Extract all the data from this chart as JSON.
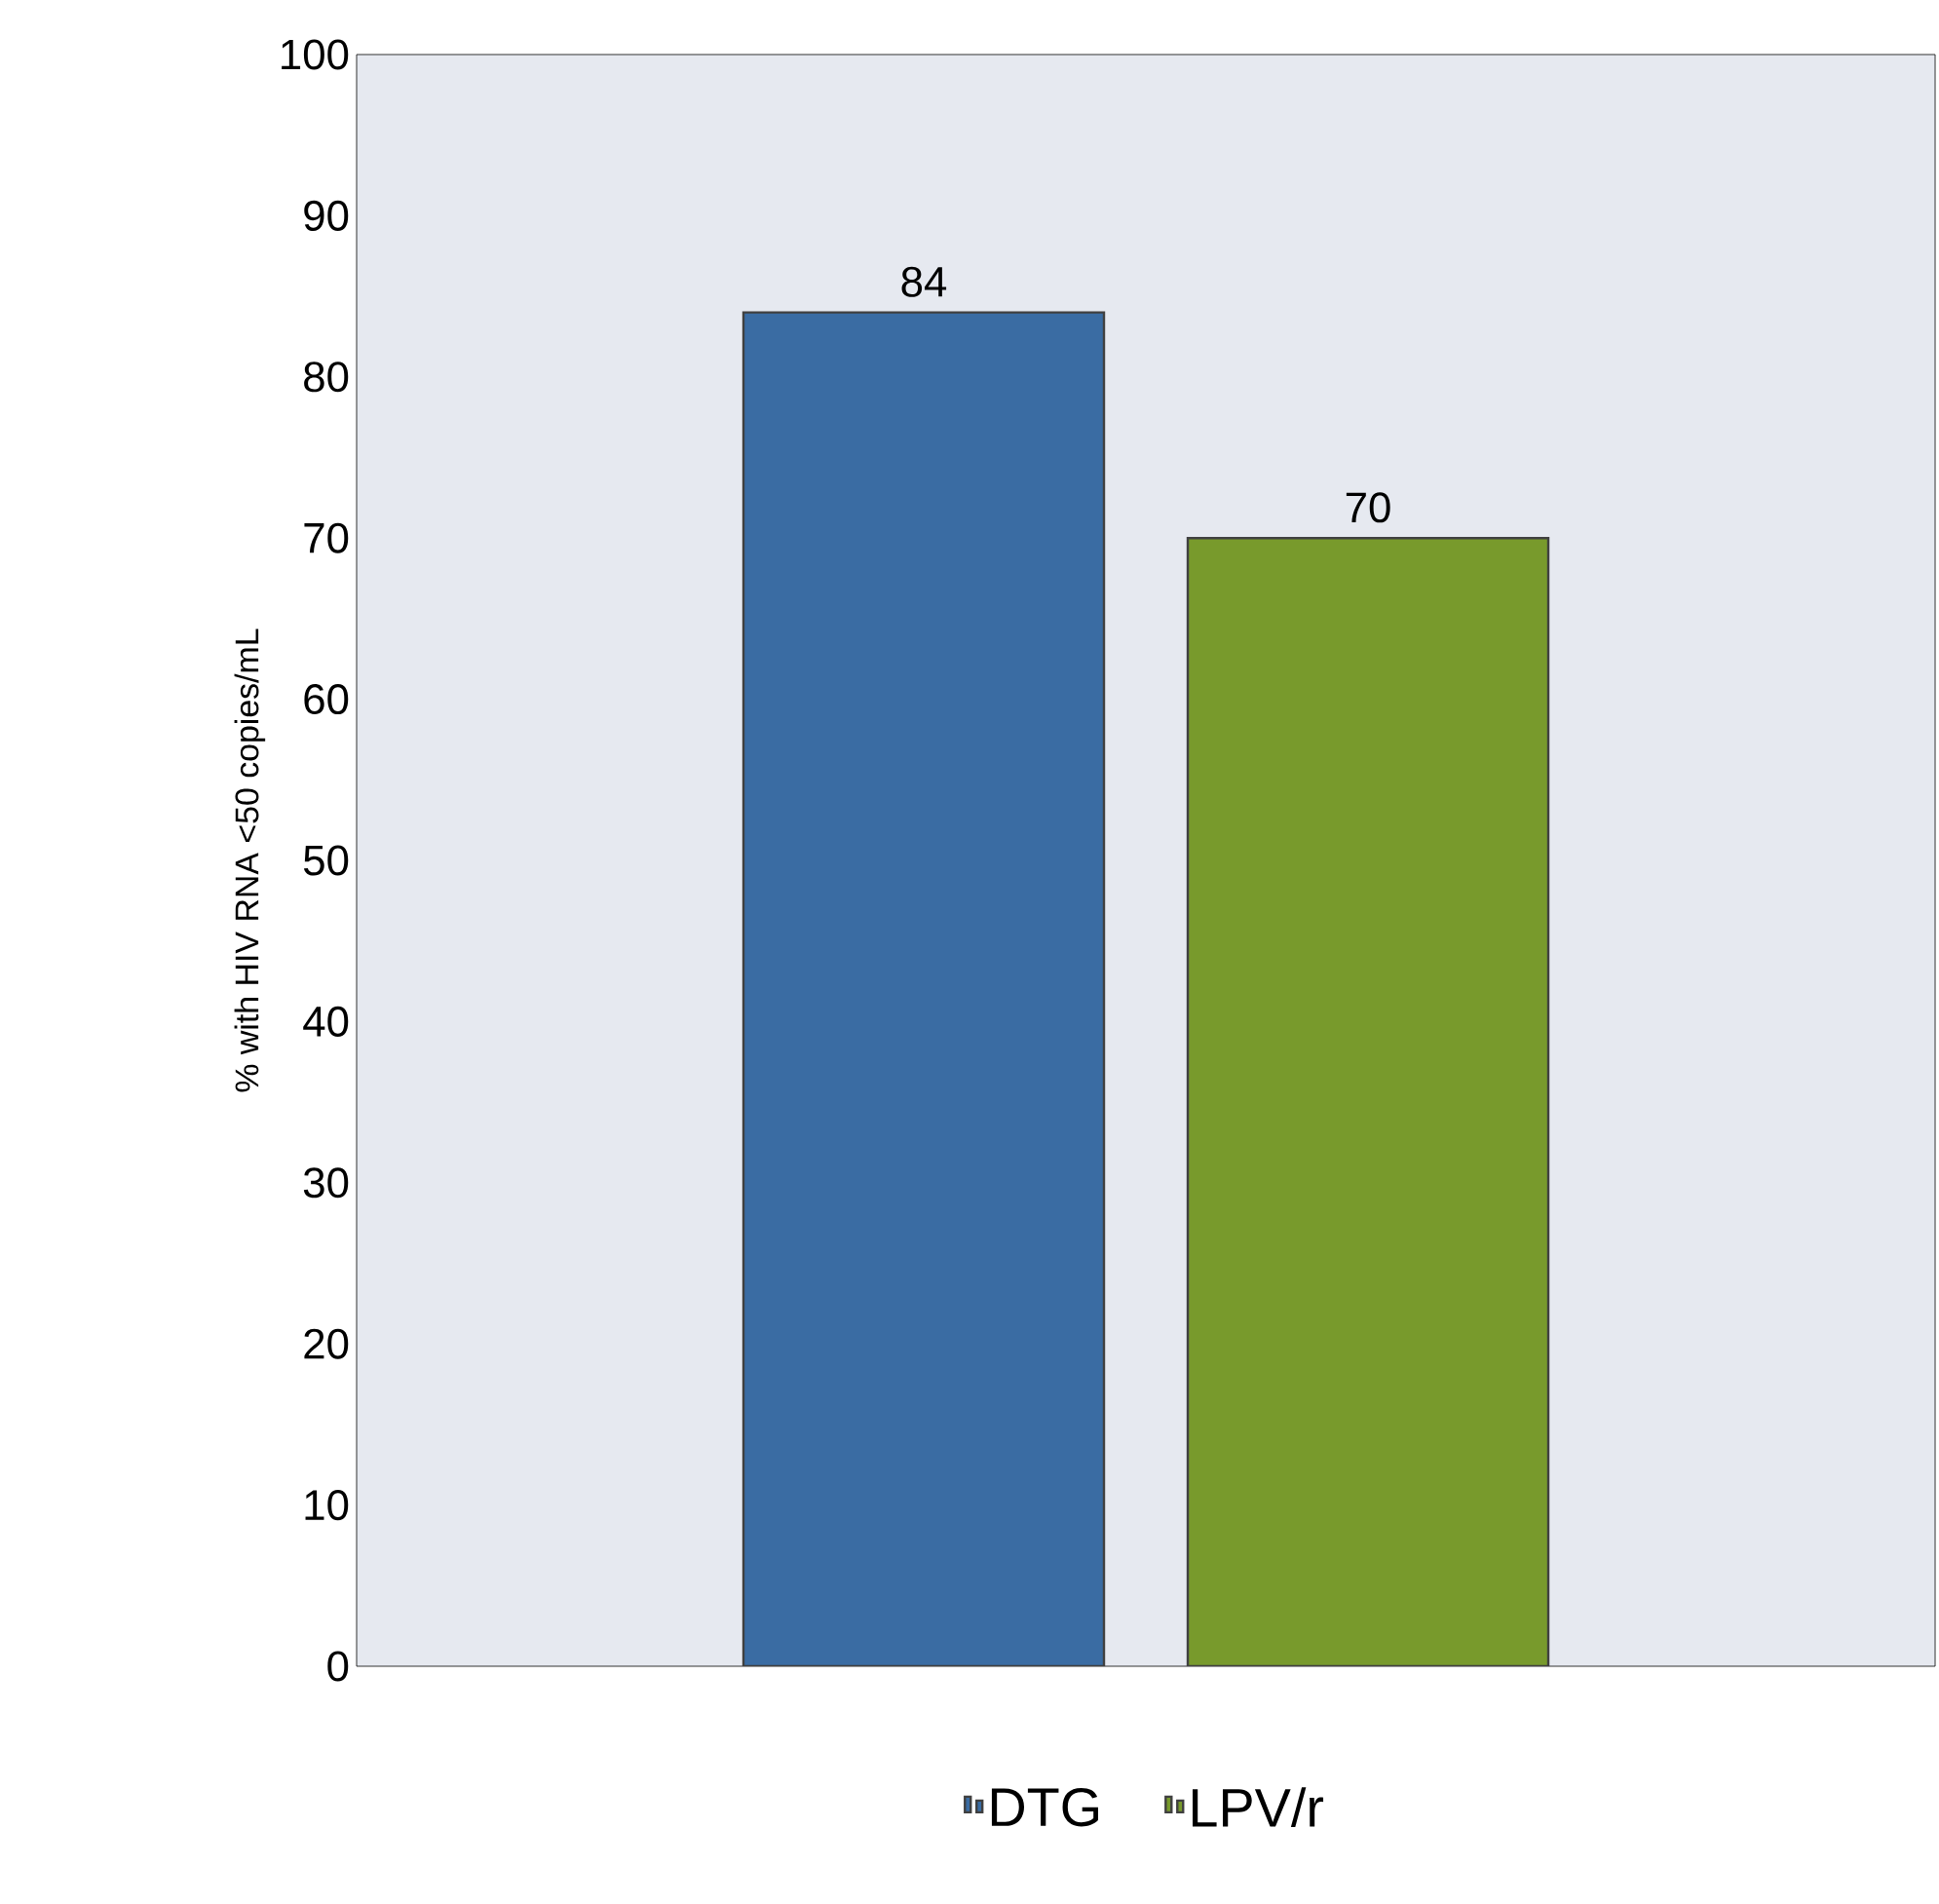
{
  "chart_data": {
    "type": "bar",
    "ylabel": "% with HIV RNA <50 copies/mL",
    "categories": [
      null
    ],
    "series": [
      {
        "name": "DTG",
        "color": "#3a6ca3",
        "values": [
          84
        ]
      },
      {
        "name": "LPV/r",
        "color": "#789a2c",
        "values": [
          70
        ]
      }
    ],
    "ylim": [
      0,
      100
    ],
    "yticks": [
      0,
      10,
      20,
      30,
      40,
      50,
      60,
      70,
      80,
      90,
      100
    ],
    "data_labels": true,
    "legend": "bottom"
  }
}
